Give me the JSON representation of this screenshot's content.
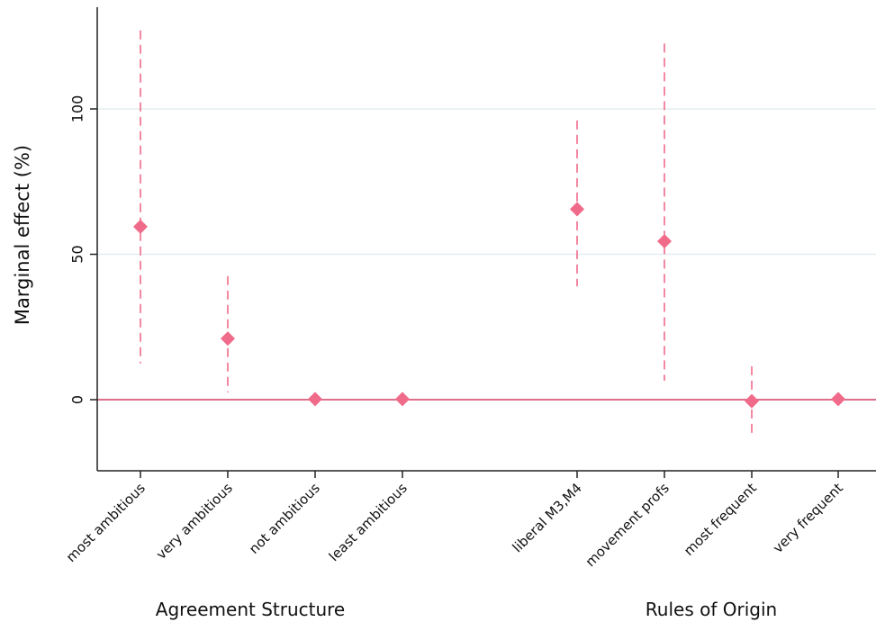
{
  "chart_data": {
    "type": "scatter",
    "title": "",
    "ylabel": "Marginal effect (%)",
    "xlabel": "",
    "ylim": [
      -25,
      135
    ],
    "yticks": [
      0,
      50,
      100
    ],
    "grid": true,
    "reference_line": 0,
    "colors": {
      "marker": "#F06A8A",
      "ci": "#F06A8A",
      "reference": "#D43F62",
      "grid": "#E4EEF1",
      "axis": "#222222"
    },
    "groups": [
      {
        "label": "Agreement Structure",
        "categories": [
          "most ambitious",
          "very ambitious",
          "not ambitious",
          "least ambitious"
        ]
      },
      {
        "label": "Rules of Origin",
        "categories": [
          "liberal M3,M4",
          "movement profs",
          "most frequent",
          "very frequent"
        ]
      }
    ],
    "points": [
      {
        "category": "most ambitious",
        "estimate": 59.5,
        "ci_low": 12.5,
        "ci_high": 127
      },
      {
        "category": "very ambitious",
        "estimate": 21,
        "ci_low": 2.5,
        "ci_high": 42.5
      },
      {
        "category": "not ambitious",
        "estimate": 0.2,
        "ci_low": 0.2,
        "ci_high": 0.2
      },
      {
        "category": "least ambitious",
        "estimate": 0.2,
        "ci_low": 0.2,
        "ci_high": 0.2
      },
      {
        "category": "liberal M3,M4",
        "estimate": 65.5,
        "ci_low": 39,
        "ci_high": 96
      },
      {
        "category": "movement profs",
        "estimate": 54.5,
        "ci_low": 6.5,
        "ci_high": 122.5
      },
      {
        "category": "most frequent",
        "estimate": -0.5,
        "ci_low": -12,
        "ci_high": 11.5
      },
      {
        "category": "very frequent",
        "estimate": 0.2,
        "ci_low": 0.2,
        "ci_high": 0.2
      }
    ]
  }
}
